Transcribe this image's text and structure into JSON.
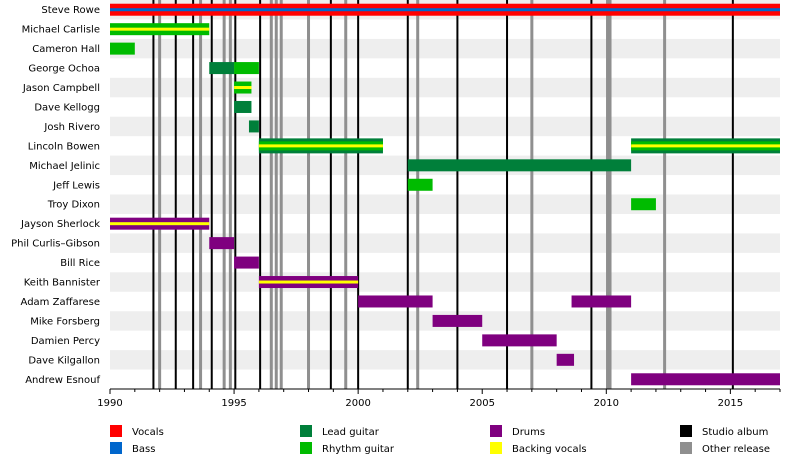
{
  "chart_data": {
    "type": "timeline",
    "title": "",
    "xlabel": "",
    "ylabel": "",
    "xlim": [
      1990,
      2017
    ],
    "x_ticks": [
      "1990",
      "1995",
      "2000",
      "2005",
      "2010",
      "2015"
    ],
    "grid": "alternating row shading",
    "legend_placement": "bottom",
    "colors": {
      "vocals": "#ff0000",
      "bass": "#0066cc",
      "lead_guitar": "#007f3a",
      "rhythm_guitar": "#00bb00",
      "drums": "#7f007f",
      "backing_vocals": "#ffff00",
      "studio_album": "#000000",
      "other_release": "#8f8f8f"
    },
    "legend": [
      {
        "key": "vocals",
        "label": "Vocals"
      },
      {
        "key": "bass",
        "label": "Bass"
      },
      {
        "key": "lead_guitar",
        "label": "Lead guitar"
      },
      {
        "key": "rhythm_guitar",
        "label": "Rhythm guitar"
      },
      {
        "key": "drums",
        "label": "Drums"
      },
      {
        "key": "backing_vocals",
        "label": "Backing vocals"
      },
      {
        "key": "studio_album",
        "label": "Studio album"
      },
      {
        "key": "other_release",
        "label": "Other release"
      }
    ],
    "members": [
      {
        "name": "Steve Rowe",
        "bars": [
          {
            "start": 1990,
            "end": 2017,
            "role": "vocals",
            "stripe": "bass"
          }
        ]
      },
      {
        "name": "Michael Carlisle",
        "bars": [
          {
            "start": 1990,
            "end": 1994,
            "role": "rhythm_guitar",
            "stripe": "backing_vocals"
          }
        ]
      },
      {
        "name": "Cameron Hall",
        "bars": [
          {
            "start": 1990,
            "end": 1991,
            "role": "rhythm_guitar"
          }
        ]
      },
      {
        "name": "George Ochoa",
        "bars": [
          {
            "start": 1994,
            "end": 1995,
            "role": "lead_guitar"
          },
          {
            "start": 1995,
            "end": 1996,
            "role": "rhythm_guitar"
          }
        ]
      },
      {
        "name": "Jason Campbell",
        "bars": [
          {
            "start": 1995,
            "end": 1995.7,
            "role": "rhythm_guitar",
            "stripe": "backing_vocals"
          }
        ]
      },
      {
        "name": "Dave Kellogg",
        "bars": [
          {
            "start": 1995,
            "end": 1995.7,
            "role": "lead_guitar"
          }
        ]
      },
      {
        "name": "Josh Rivero",
        "bars": [
          {
            "start": 1995.6,
            "end": 1996,
            "role": "lead_guitar"
          }
        ]
      },
      {
        "name": "Lincoln Bowen",
        "bars": [
          {
            "start": 1996,
            "end": 2001,
            "role": "rhythm_guitar",
            "stripe": "backing_vocals",
            "edge": "lead_guitar"
          },
          {
            "start": 2011,
            "end": 2017,
            "role": "rhythm_guitar",
            "stripe": "backing_vocals",
            "edge": "lead_guitar"
          }
        ]
      },
      {
        "name": "Michael Jelinic",
        "bars": [
          {
            "start": 2002,
            "end": 2011,
            "role": "lead_guitar"
          }
        ]
      },
      {
        "name": "Jeff Lewis",
        "bars": [
          {
            "start": 2002,
            "end": 2003,
            "role": "rhythm_guitar"
          }
        ]
      },
      {
        "name": "Troy Dixon",
        "bars": [
          {
            "start": 2011,
            "end": 2012,
            "role": "rhythm_guitar"
          }
        ]
      },
      {
        "name": "Jayson Sherlock",
        "bars": [
          {
            "start": 1990,
            "end": 1994,
            "role": "drums",
            "stripe": "backing_vocals"
          }
        ]
      },
      {
        "name": "Phil Curlis–Gibson",
        "bars": [
          {
            "start": 1994,
            "end": 1995,
            "role": "drums"
          }
        ]
      },
      {
        "name": "Bill Rice",
        "bars": [
          {
            "start": 1995,
            "end": 1996,
            "role": "drums"
          }
        ]
      },
      {
        "name": "Keith Bannister",
        "bars": [
          {
            "start": 1996,
            "end": 2000,
            "role": "drums",
            "stripe": "backing_vocals"
          }
        ]
      },
      {
        "name": "Adam Zaffarese",
        "bars": [
          {
            "start": 2000,
            "end": 2003,
            "role": "drums"
          },
          {
            "start": 2008.6,
            "end": 2011,
            "role": "drums"
          }
        ]
      },
      {
        "name": "Mike Forsberg",
        "bars": [
          {
            "start": 2003,
            "end": 2005,
            "role": "drums"
          }
        ]
      },
      {
        "name": "Damien Percy",
        "bars": [
          {
            "start": 2005,
            "end": 2008,
            "role": "drums"
          }
        ]
      },
      {
        "name": "Dave Kilgallon",
        "bars": [
          {
            "start": 2008,
            "end": 2008.7,
            "role": "drums"
          }
        ]
      },
      {
        "name": "Andrew Esnouf",
        "bars": [
          {
            "start": 2011,
            "end": 2017,
            "role": "drums"
          }
        ]
      }
    ],
    "studio_albums": [
      1991.75,
      1992.65,
      1993.35,
      1994.1,
      1995.05,
      1996.05,
      1998.9,
      2000.0,
      2002.0,
      2004.0,
      2006.0,
      2009.4,
      2015.1
    ],
    "other_releases": [
      1992.0,
      1993.65,
      1994.6,
      1994.85,
      1996.5,
      1996.7,
      1996.9,
      1998.0,
      1999.5,
      2002.4,
      2007.0,
      2010.05,
      2010.15,
      2012.35
    ]
  }
}
